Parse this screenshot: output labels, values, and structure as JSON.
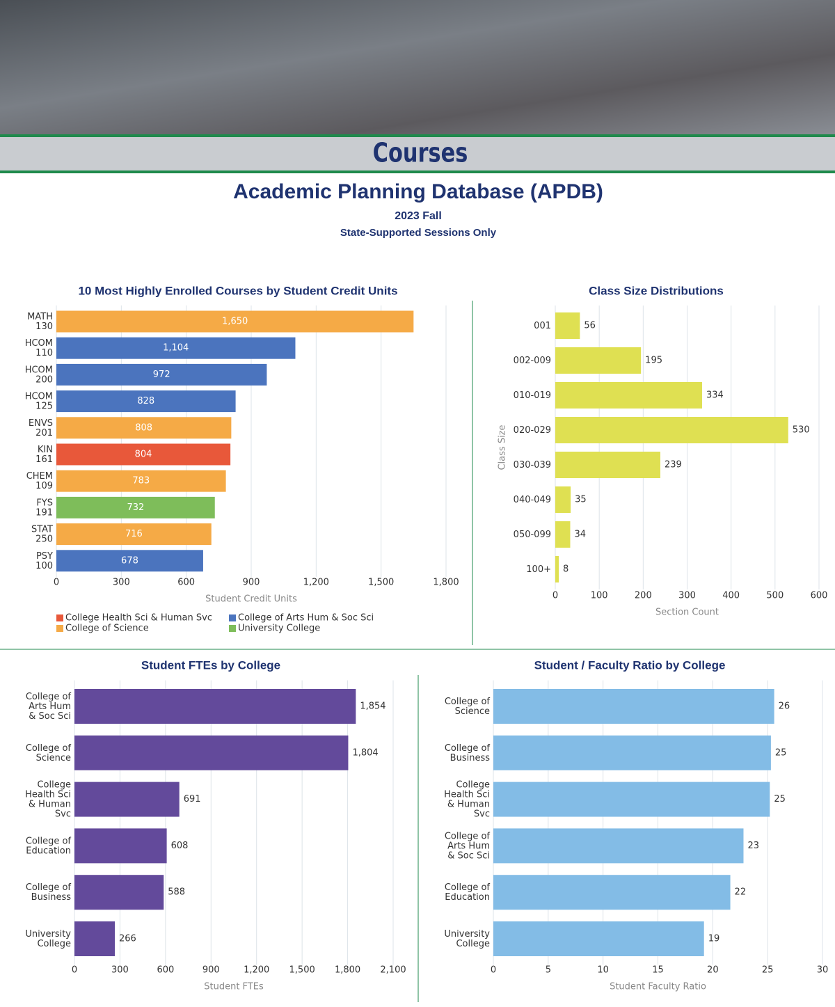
{
  "header": {
    "banner": "Courses",
    "title": "Academic Planning Database (APDB)",
    "subtitle": "2023 Fall",
    "note": "State-Supported Sessions Only"
  },
  "chart_data": [
    {
      "type": "bar",
      "orientation": "horizontal",
      "title": "10 Most Highly Enrolled Courses by Student Credit Units",
      "categories": [
        "MATH 130",
        "HCOM 110",
        "HCOM 200",
        "HCOM 125",
        "ENVS 201",
        "KIN 161",
        "CHEM 109",
        "FYS 191",
        "STAT 250",
        "PSY 100"
      ],
      "values": [
        1650,
        1104,
        972,
        828,
        808,
        804,
        783,
        732,
        716,
        678
      ],
      "value_labels": [
        "1,650",
        "1,104",
        "972",
        "828",
        "808",
        "804",
        "783",
        "732",
        "716",
        "678"
      ],
      "colors": [
        "#f5aa46",
        "#4b74be",
        "#4b74be",
        "#4b74be",
        "#f5aa46",
        "#e8583a",
        "#f5aa46",
        "#7ebd5a",
        "#f5aa46",
        "#4b74be"
      ],
      "legend": [
        {
          "name": "College Health Sci & Human Svc",
          "color": "#e8583a"
        },
        {
          "name": "College of Arts Hum & Soc Sci",
          "color": "#4b74be"
        },
        {
          "name": "College of Science",
          "color": "#f5aa46"
        },
        {
          "name": "University College",
          "color": "#7ebd5a"
        }
      ],
      "xlabel": "Student Credit Units",
      "xlim": [
        0,
        1800
      ],
      "xticks": [
        0,
        300,
        600,
        900,
        {
          "value": 1200,
          "label": "1,200"
        },
        {
          "value": 1500,
          "label": "1,500"
        },
        {
          "value": 1800,
          "label": "1,800"
        }
      ],
      "grid": true
    },
    {
      "type": "bar",
      "orientation": "horizontal",
      "title": "Class Size Distributions",
      "categories": [
        "001",
        "002-009",
        "010-019",
        "020-029",
        "030-039",
        "040-049",
        "050-099",
        "100+"
      ],
      "values": [
        56,
        195,
        334,
        530,
        239,
        35,
        34,
        8
      ],
      "color": "#dfe052",
      "xlabel": "Section Count",
      "ylabel": "Class Size",
      "xlim": [
        0,
        600
      ],
      "xticks": [
        0,
        100,
        200,
        300,
        400,
        500,
        600
      ],
      "grid": true
    },
    {
      "type": "bar",
      "orientation": "horizontal",
      "title": "Student FTEs by College",
      "categories": [
        "College of Arts Hum & Soc Sci",
        "College of Science",
        "College Health Sci & Human Svc",
        "College of Education",
        "College of Business",
        "University College"
      ],
      "values": [
        1854,
        1804,
        691,
        608,
        588,
        266
      ],
      "value_labels": [
        "1,854",
        "1,804",
        "691",
        "608",
        "588",
        "266"
      ],
      "color": "#634a9b",
      "xlabel": "Student FTEs",
      "xlim": [
        0,
        2100
      ],
      "xticks": [
        0,
        300,
        600,
        900,
        {
          "value": 1200,
          "label": "1,200"
        },
        {
          "value": 1500,
          "label": "1,500"
        },
        {
          "value": 1800,
          "label": "1,800"
        },
        {
          "value": 2100,
          "label": "2,100"
        }
      ],
      "grid": true
    },
    {
      "type": "bar",
      "orientation": "horizontal",
      "title": "Student / Faculty Ratio by College",
      "categories": [
        "College of Science",
        "College of Business",
        "College Health Sci & Human Svc",
        "College of Arts Hum & Soc Sci",
        "College of Education",
        "University College"
      ],
      "values": [
        25.6,
        25.3,
        25.2,
        22.8,
        21.6,
        19.2
      ],
      "value_labels": [
        "26",
        "25",
        "25",
        "23",
        "22",
        "19"
      ],
      "color": "#83bce6",
      "xlabel": "Student Faculty Ratio",
      "xlim": [
        0,
        30
      ],
      "xticks": [
        0,
        5,
        10,
        15,
        20,
        25,
        30
      ],
      "grid": true
    }
  ]
}
